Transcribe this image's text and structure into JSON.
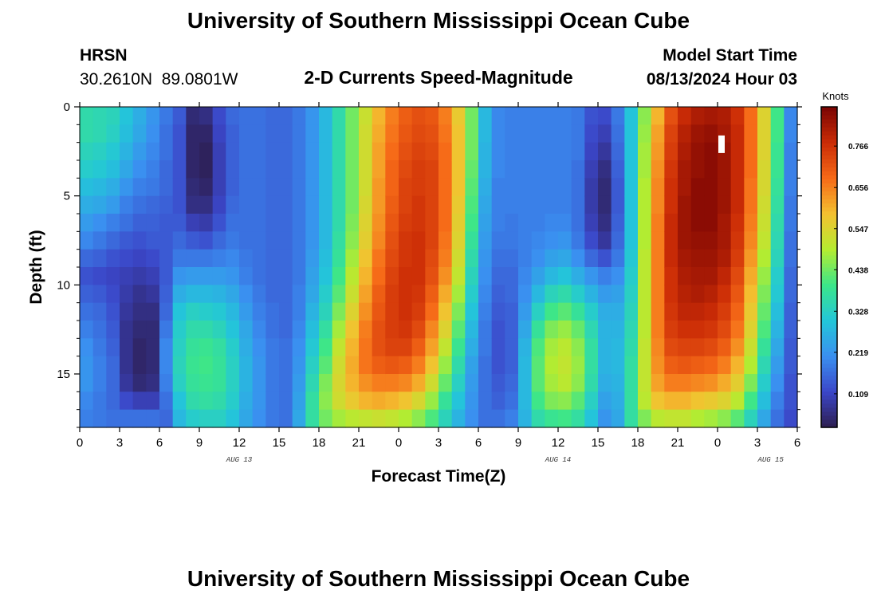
{
  "page": {
    "title_top": "University of Southern Mississippi Ocean Cube",
    "title_bottom": "University of Southern Mississippi Ocean Cube",
    "station_name": "HRSN",
    "station_coords": "30.2610N  89.0801W",
    "chart_title": "2-D Currents Speed-Magnitude",
    "model_start_label": "Model Start Time",
    "model_start_value": "08/13/2024 Hour 03"
  },
  "colors": {
    "ramp": [
      "#2d1e4f",
      "#3b46c8",
      "#3a8ff0",
      "#23c6d9",
      "#3be68a",
      "#b5ec30",
      "#f4c130",
      "#f66a18",
      "#cb2c06",
      "#7a0403"
    ]
  },
  "chart_data": {
    "type": "heatmap",
    "title": "2-D Currents Speed-Magnitude",
    "xlabel": "Forecast Time(Z)",
    "ylabel": "Depth (ft)",
    "x_start_hour": 0,
    "x_end_hour": 54,
    "x_ticks": [
      "0",
      "3",
      "6",
      "9",
      "12",
      "15",
      "18",
      "21",
      "0",
      "3",
      "6",
      "9",
      "12",
      "15",
      "18",
      "21",
      "0",
      "3",
      "6"
    ],
    "date_labels": [
      {
        "text": "AUG 13",
        "hour": 12
      },
      {
        "text": "AUG 14",
        "hour": 36
      },
      {
        "text": "AUG 15",
        "hour": 52
      }
    ],
    "y_range": [
      0,
      18
    ],
    "y_ticks": [
      0,
      5,
      10,
      15
    ],
    "x_values_hours": [
      0,
      1,
      2,
      3,
      4,
      5,
      6,
      7,
      8,
      9,
      10,
      11,
      12,
      13,
      14,
      15,
      16,
      17,
      18,
      19,
      20,
      21,
      22,
      23,
      24,
      25,
      26,
      27,
      28,
      29,
      30,
      31,
      32,
      33,
      34,
      35,
      36,
      37,
      38,
      39,
      40,
      41,
      42,
      43,
      44,
      45,
      46,
      47,
      48,
      49,
      50,
      51,
      52,
      53
    ],
    "depth_bins_ft": [
      0.5,
      1.5,
      2.5,
      3.5,
      4.5,
      5.5,
      6.5,
      7.5,
      8.5,
      9.5,
      10.5,
      11.5,
      12.5,
      13.5,
      14.5,
      15.5,
      16.5,
      17.5
    ],
    "speed_knots_profiles": [
      [
        0.36,
        0.36,
        0.34,
        0.32,
        0.29,
        0.26,
        0.23,
        0.2,
        0.16,
        0.13,
        0.15,
        0.17,
        0.19,
        0.21,
        0.22,
        0.22,
        0.2,
        0.19
      ],
      [
        0.35,
        0.35,
        0.33,
        0.31,
        0.28,
        0.25,
        0.21,
        0.18,
        0.15,
        0.12,
        0.14,
        0.16,
        0.17,
        0.18,
        0.19,
        0.19,
        0.18,
        0.18
      ],
      [
        0.34,
        0.33,
        0.31,
        0.29,
        0.26,
        0.23,
        0.19,
        0.16,
        0.13,
        0.11,
        0.12,
        0.13,
        0.14,
        0.15,
        0.16,
        0.16,
        0.16,
        0.17
      ],
      [
        0.3,
        0.29,
        0.27,
        0.25,
        0.22,
        0.19,
        0.17,
        0.14,
        0.12,
        0.1,
        0.09,
        0.08,
        0.07,
        0.07,
        0.07,
        0.08,
        0.12,
        0.17
      ],
      [
        0.26,
        0.25,
        0.23,
        0.21,
        0.19,
        0.17,
        0.15,
        0.13,
        0.11,
        0.09,
        0.07,
        0.06,
        0.05,
        0.04,
        0.04,
        0.05,
        0.1,
        0.17
      ],
      [
        0.22,
        0.21,
        0.2,
        0.19,
        0.18,
        0.16,
        0.15,
        0.14,
        0.12,
        0.1,
        0.08,
        0.06,
        0.05,
        0.05,
        0.05,
        0.06,
        0.1,
        0.17
      ],
      [
        0.18,
        0.17,
        0.17,
        0.16,
        0.16,
        0.15,
        0.14,
        0.14,
        0.14,
        0.14,
        0.15,
        0.16,
        0.18,
        0.2,
        0.2,
        0.19,
        0.17,
        0.16
      ],
      [
        0.14,
        0.13,
        0.13,
        0.13,
        0.13,
        0.13,
        0.14,
        0.16,
        0.18,
        0.22,
        0.26,
        0.3,
        0.32,
        0.33,
        0.34,
        0.33,
        0.3,
        0.28
      ],
      [
        0.05,
        0.04,
        0.04,
        0.04,
        0.05,
        0.06,
        0.1,
        0.14,
        0.18,
        0.23,
        0.28,
        0.33,
        0.36,
        0.38,
        0.39,
        0.38,
        0.36,
        0.32
      ],
      [
        0.06,
        0.04,
        0.03,
        0.03,
        0.04,
        0.06,
        0.09,
        0.13,
        0.18,
        0.23,
        0.28,
        0.32,
        0.36,
        0.39,
        0.4,
        0.39,
        0.37,
        0.33
      ],
      [
        0.12,
        0.11,
        0.1,
        0.1,
        0.1,
        0.11,
        0.13,
        0.16,
        0.19,
        0.23,
        0.27,
        0.31,
        0.34,
        0.37,
        0.38,
        0.38,
        0.36,
        0.33
      ],
      [
        0.16,
        0.15,
        0.15,
        0.15,
        0.15,
        0.16,
        0.17,
        0.18,
        0.2,
        0.22,
        0.25,
        0.28,
        0.3,
        0.32,
        0.33,
        0.33,
        0.32,
        0.3
      ],
      [
        0.17,
        0.17,
        0.17,
        0.17,
        0.17,
        0.17,
        0.17,
        0.17,
        0.18,
        0.19,
        0.21,
        0.23,
        0.25,
        0.26,
        0.27,
        0.27,
        0.26,
        0.25
      ],
      [
        0.17,
        0.17,
        0.17,
        0.17,
        0.17,
        0.17,
        0.17,
        0.17,
        0.17,
        0.17,
        0.18,
        0.19,
        0.2,
        0.21,
        0.22,
        0.22,
        0.22,
        0.21
      ],
      [
        0.16,
        0.16,
        0.16,
        0.16,
        0.16,
        0.16,
        0.16,
        0.16,
        0.16,
        0.16,
        0.16,
        0.17,
        0.17,
        0.18,
        0.18,
        0.18,
        0.18,
        0.18
      ],
      [
        0.16,
        0.16,
        0.16,
        0.16,
        0.16,
        0.16,
        0.16,
        0.16,
        0.16,
        0.16,
        0.16,
        0.16,
        0.16,
        0.17,
        0.17,
        0.17,
        0.17,
        0.17
      ],
      [
        0.18,
        0.18,
        0.18,
        0.18,
        0.18,
        0.18,
        0.18,
        0.18,
        0.18,
        0.18,
        0.19,
        0.19,
        0.2,
        0.21,
        0.22,
        0.23,
        0.24,
        0.25
      ],
      [
        0.22,
        0.22,
        0.22,
        0.22,
        0.22,
        0.22,
        0.22,
        0.22,
        0.23,
        0.24,
        0.25,
        0.27,
        0.29,
        0.31,
        0.33,
        0.35,
        0.37,
        0.37
      ],
      [
        0.28,
        0.28,
        0.28,
        0.28,
        0.28,
        0.28,
        0.28,
        0.28,
        0.29,
        0.3,
        0.32,
        0.34,
        0.37,
        0.4,
        0.42,
        0.45,
        0.46,
        0.44
      ],
      [
        0.36,
        0.36,
        0.36,
        0.36,
        0.36,
        0.36,
        0.36,
        0.37,
        0.38,
        0.4,
        0.42,
        0.45,
        0.48,
        0.51,
        0.53,
        0.54,
        0.53,
        0.48
      ],
      [
        0.44,
        0.44,
        0.44,
        0.44,
        0.44,
        0.44,
        0.45,
        0.46,
        0.48,
        0.5,
        0.52,
        0.55,
        0.58,
        0.6,
        0.61,
        0.6,
        0.57,
        0.5
      ],
      [
        0.52,
        0.53,
        0.53,
        0.53,
        0.53,
        0.54,
        0.55,
        0.56,
        0.58,
        0.6,
        0.62,
        0.64,
        0.66,
        0.67,
        0.67,
        0.64,
        0.6,
        0.51
      ],
      [
        0.6,
        0.61,
        0.62,
        0.62,
        0.63,
        0.63,
        0.64,
        0.65,
        0.67,
        0.68,
        0.7,
        0.71,
        0.72,
        0.72,
        0.7,
        0.66,
        0.61,
        0.52
      ],
      [
        0.66,
        0.67,
        0.68,
        0.69,
        0.69,
        0.7,
        0.71,
        0.72,
        0.73,
        0.74,
        0.75,
        0.75,
        0.75,
        0.74,
        0.71,
        0.66,
        0.6,
        0.51
      ],
      [
        0.7,
        0.71,
        0.72,
        0.73,
        0.74,
        0.74,
        0.75,
        0.76,
        0.76,
        0.77,
        0.77,
        0.77,
        0.76,
        0.74,
        0.7,
        0.65,
        0.58,
        0.49
      ],
      [
        0.72,
        0.73,
        0.74,
        0.75,
        0.75,
        0.76,
        0.76,
        0.77,
        0.77,
        0.77,
        0.76,
        0.75,
        0.73,
        0.7,
        0.66,
        0.61,
        0.54,
        0.46
      ],
      [
        0.71,
        0.72,
        0.73,
        0.74,
        0.74,
        0.74,
        0.74,
        0.74,
        0.73,
        0.72,
        0.7,
        0.68,
        0.65,
        0.62,
        0.58,
        0.53,
        0.47,
        0.41
      ],
      [
        0.66,
        0.67,
        0.68,
        0.68,
        0.68,
        0.68,
        0.68,
        0.67,
        0.66,
        0.64,
        0.61,
        0.58,
        0.55,
        0.51,
        0.47,
        0.43,
        0.38,
        0.34
      ],
      [
        0.57,
        0.58,
        0.58,
        0.58,
        0.58,
        0.57,
        0.56,
        0.55,
        0.53,
        0.51,
        0.48,
        0.45,
        0.42,
        0.39,
        0.36,
        0.33,
        0.3,
        0.27
      ],
      [
        0.44,
        0.44,
        0.44,
        0.43,
        0.42,
        0.41,
        0.4,
        0.38,
        0.36,
        0.34,
        0.32,
        0.3,
        0.28,
        0.26,
        0.24,
        0.23,
        0.22,
        0.21
      ],
      [
        0.28,
        0.28,
        0.27,
        0.27,
        0.26,
        0.25,
        0.24,
        0.23,
        0.22,
        0.21,
        0.2,
        0.19,
        0.18,
        0.18,
        0.17,
        0.17,
        0.17,
        0.17
      ],
      [
        0.2,
        0.2,
        0.2,
        0.2,
        0.19,
        0.19,
        0.19,
        0.18,
        0.17,
        0.16,
        0.15,
        0.14,
        0.13,
        0.13,
        0.13,
        0.14,
        0.15,
        0.17
      ],
      [
        0.19,
        0.19,
        0.19,
        0.19,
        0.19,
        0.19,
        0.18,
        0.18,
        0.17,
        0.16,
        0.16,
        0.15,
        0.15,
        0.15,
        0.15,
        0.16,
        0.17,
        0.19
      ],
      [
        0.19,
        0.19,
        0.19,
        0.19,
        0.19,
        0.19,
        0.19,
        0.19,
        0.19,
        0.2,
        0.21,
        0.23,
        0.25,
        0.27,
        0.28,
        0.28,
        0.28,
        0.27
      ],
      [
        0.19,
        0.19,
        0.19,
        0.19,
        0.19,
        0.19,
        0.19,
        0.2,
        0.21,
        0.24,
        0.28,
        0.33,
        0.38,
        0.41,
        0.42,
        0.42,
        0.4,
        0.36
      ],
      [
        0.19,
        0.19,
        0.19,
        0.19,
        0.19,
        0.19,
        0.2,
        0.21,
        0.24,
        0.28,
        0.34,
        0.4,
        0.45,
        0.48,
        0.49,
        0.48,
        0.45,
        0.39
      ],
      [
        0.19,
        0.19,
        0.19,
        0.19,
        0.19,
        0.19,
        0.2,
        0.22,
        0.25,
        0.3,
        0.36,
        0.42,
        0.47,
        0.5,
        0.51,
        0.5,
        0.46,
        0.4
      ],
      [
        0.18,
        0.18,
        0.18,
        0.17,
        0.17,
        0.17,
        0.17,
        0.18,
        0.21,
        0.26,
        0.32,
        0.38,
        0.43,
        0.46,
        0.47,
        0.46,
        0.42,
        0.37
      ],
      [
        0.13,
        0.12,
        0.11,
        0.1,
        0.09,
        0.09,
        0.1,
        0.12,
        0.16,
        0.22,
        0.27,
        0.32,
        0.35,
        0.37,
        0.37,
        0.36,
        0.33,
        0.3
      ],
      [
        0.12,
        0.1,
        0.08,
        0.06,
        0.05,
        0.05,
        0.06,
        0.08,
        0.13,
        0.19,
        0.23,
        0.26,
        0.27,
        0.27,
        0.27,
        0.26,
        0.24,
        0.22
      ],
      [
        0.18,
        0.17,
        0.16,
        0.15,
        0.14,
        0.14,
        0.15,
        0.16,
        0.18,
        0.21,
        0.24,
        0.26,
        0.27,
        0.28,
        0.28,
        0.27,
        0.26,
        0.25
      ],
      [
        0.3,
        0.3,
        0.3,
        0.3,
        0.3,
        0.3,
        0.3,
        0.3,
        0.31,
        0.32,
        0.33,
        0.34,
        0.35,
        0.36,
        0.37,
        0.37,
        0.37,
        0.37
      ],
      [
        0.46,
        0.47,
        0.48,
        0.48,
        0.49,
        0.49,
        0.49,
        0.49,
        0.5,
        0.5,
        0.5,
        0.5,
        0.5,
        0.51,
        0.51,
        0.51,
        0.5,
        0.45
      ],
      [
        0.6,
        0.62,
        0.63,
        0.64,
        0.65,
        0.65,
        0.66,
        0.66,
        0.66,
        0.66,
        0.66,
        0.66,
        0.66,
        0.65,
        0.64,
        0.62,
        0.58,
        0.5
      ],
      [
        0.72,
        0.74,
        0.75,
        0.76,
        0.77,
        0.77,
        0.78,
        0.78,
        0.78,
        0.77,
        0.77,
        0.76,
        0.75,
        0.73,
        0.7,
        0.66,
        0.6,
        0.51
      ],
      [
        0.78,
        0.8,
        0.81,
        0.82,
        0.82,
        0.83,
        0.83,
        0.83,
        0.82,
        0.81,
        0.8,
        0.79,
        0.77,
        0.74,
        0.71,
        0.66,
        0.6,
        0.51
      ],
      [
        0.81,
        0.83,
        0.84,
        0.84,
        0.85,
        0.85,
        0.85,
        0.84,
        0.83,
        0.82,
        0.81,
        0.79,
        0.77,
        0.74,
        0.7,
        0.65,
        0.58,
        0.49
      ],
      [
        0.82,
        0.84,
        0.85,
        0.85,
        0.85,
        0.85,
        0.85,
        0.84,
        0.83,
        0.82,
        0.8,
        0.78,
        0.76,
        0.73,
        0.69,
        0.64,
        0.57,
        0.48
      ],
      [
        0.81,
        0.82,
        0.83,
        0.83,
        0.83,
        0.83,
        0.82,
        0.82,
        0.81,
        0.79,
        0.77,
        0.75,
        0.73,
        0.7,
        0.66,
        0.61,
        0.55,
        0.46
      ],
      [
        0.77,
        0.78,
        0.78,
        0.78,
        0.78,
        0.78,
        0.77,
        0.76,
        0.75,
        0.73,
        0.71,
        0.69,
        0.67,
        0.64,
        0.6,
        0.56,
        0.5,
        0.42
      ],
      [
        0.68,
        0.68,
        0.68,
        0.68,
        0.67,
        0.67,
        0.66,
        0.65,
        0.63,
        0.61,
        0.59,
        0.57,
        0.55,
        0.52,
        0.49,
        0.45,
        0.4,
        0.34
      ],
      [
        0.55,
        0.55,
        0.55,
        0.54,
        0.54,
        0.53,
        0.52,
        0.51,
        0.49,
        0.47,
        0.45,
        0.43,
        0.41,
        0.38,
        0.35,
        0.32,
        0.29,
        0.25
      ],
      [
        0.4,
        0.4,
        0.39,
        0.39,
        0.38,
        0.37,
        0.36,
        0.35,
        0.34,
        0.32,
        0.31,
        0.29,
        0.27,
        0.25,
        0.23,
        0.21,
        0.19,
        0.17
      ],
      [
        0.2,
        0.2,
        0.19,
        0.19,
        0.19,
        0.18,
        0.18,
        0.17,
        0.17,
        0.16,
        0.16,
        0.15,
        0.15,
        0.14,
        0.14,
        0.13,
        0.13,
        0.12
      ]
    ],
    "colorbar": {
      "label": "Knots",
      "min": 0.02,
      "max": 0.87,
      "tick_values": [
        0.109,
        0.219,
        0.328,
        0.438,
        0.547,
        0.656,
        0.766
      ],
      "tick_labels": [
        "0.109",
        "0.219",
        "0.328",
        "0.438",
        "0.547",
        "0.656",
        "0.766"
      ]
    },
    "marker": {
      "type": "white-rectangle",
      "hour": 48.3,
      "depth_ft": 2.1
    }
  }
}
